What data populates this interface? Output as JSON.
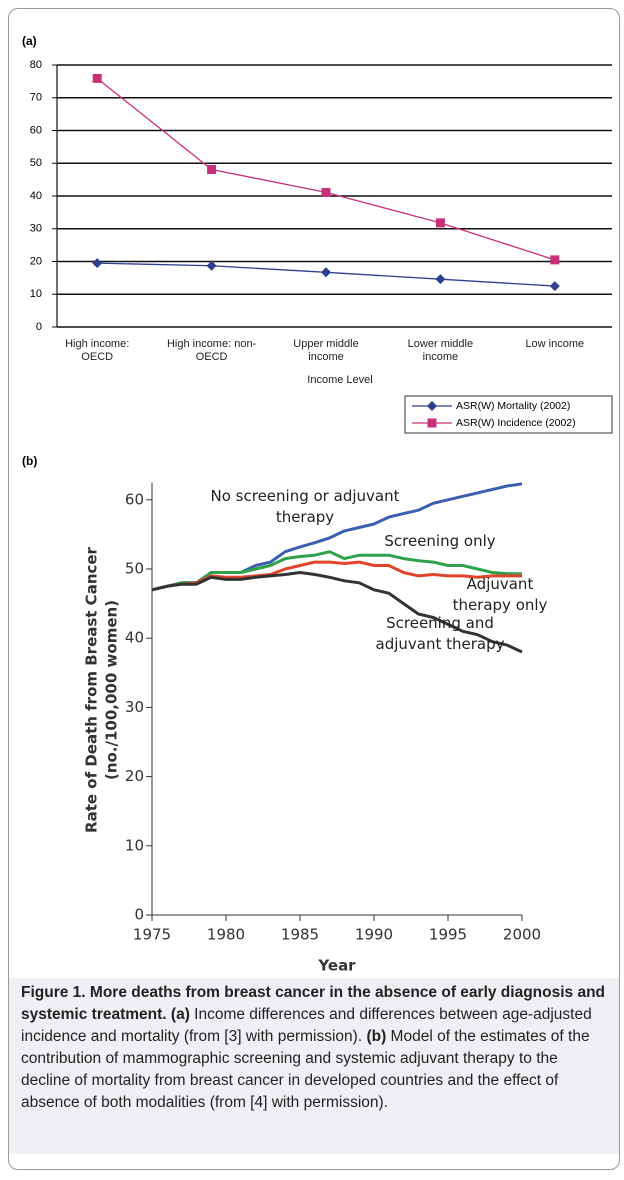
{
  "chart_data": [
    {
      "type": "line",
      "panel": "(a)",
      "categories": [
        "High income: OECD",
        "High income: non-OECD",
        "Upper middle income",
        "Lower middle income",
        "Low income"
      ],
      "xlabel": "Income Level",
      "ylim": [
        0,
        80
      ],
      "yticks": [
        0,
        10,
        20,
        30,
        40,
        50,
        60,
        70,
        80
      ],
      "grid": true,
      "series": [
        {
          "name": "ASR(W) Mortality (2002)",
          "color": "#2f3f8f",
          "marker": "diamond",
          "values": [
            19.5,
            18.7,
            16.7,
            14.6,
            12.5
          ]
        },
        {
          "name": "ASR(W) Incidence (2002)",
          "color": "#c8307a",
          "marker": "square",
          "values": [
            75.9,
            48.1,
            41.1,
            31.8,
            20.5
          ]
        }
      ]
    },
    {
      "type": "line",
      "panel": "(b)",
      "x": [
        1975,
        1976,
        1977,
        1978,
        1979,
        1980,
        1981,
        1982,
        1983,
        1984,
        1985,
        1986,
        1987,
        1988,
        1989,
        1990,
        1991,
        1992,
        1993,
        1994,
        1995,
        1996,
        1997,
        1998,
        1999,
        2000
      ],
      "xlim": [
        1975,
        2000
      ],
      "xticks": [
        1975,
        1980,
        1985,
        1990,
        1995,
        2000
      ],
      "ylim": [
        0,
        62.5
      ],
      "yticks": [
        0,
        10,
        20,
        30,
        40,
        50,
        60
      ],
      "grid": false,
      "xlabel": "Year",
      "ylabel": "Rate of Death from Breast Cancer",
      "ylabel_unit": "(no./100,000 women)",
      "series": [
        {
          "name": "No screening or adjuvant therapy",
          "color": "#3a5fb0",
          "values": [
            47,
            47.5,
            48,
            48,
            49.5,
            49.5,
            49.5,
            50.5,
            51,
            52.5,
            53.2,
            53.8,
            54.5,
            55.5,
            56,
            56.5,
            57.5,
            58,
            58.5,
            59.5,
            60,
            60.5,
            61,
            61.5,
            62,
            62.3
          ]
        },
        {
          "name": "Screening only",
          "color": "#2ea24a",
          "values": [
            47,
            47.5,
            48,
            48,
            49.5,
            49.5,
            49.5,
            50,
            50.5,
            51.5,
            51.8,
            52,
            52.5,
            51.5,
            52,
            52,
            52,
            51.5,
            51.2,
            51,
            50.5,
            50.5,
            50,
            49.5,
            49.3,
            49.3
          ]
        },
        {
          "name": "Adjuvant therapy only",
          "color": "#e0452b",
          "values": [
            47,
            47.5,
            47.8,
            48,
            49,
            48.8,
            48.8,
            49,
            49.2,
            50,
            50.5,
            51,
            51,
            50.8,
            51,
            50.5,
            50.5,
            49.5,
            49,
            49.2,
            49,
            49,
            48.8,
            49,
            49,
            49
          ]
        },
        {
          "name": "Screening and adjuvant therapy",
          "color": "#333333",
          "values": [
            47,
            47.5,
            47.8,
            47.8,
            48.8,
            48.5,
            48.5,
            48.8,
            49,
            49.2,
            49.5,
            49.2,
            48.8,
            48.3,
            48,
            47,
            46.5,
            45,
            43.5,
            43,
            42,
            41,
            40.5,
            39.5,
            39,
            38
          ]
        }
      ]
    }
  ],
  "caption": {
    "title": "Figure 1. More deaths from breast cancer in the absence of early diagnosis and systemic treatment.",
    "a_label": "(a)",
    "a_text": "Income differences and differences between age-adjusted incidence and mortality (from [3] with permission).",
    "b_label": "(b)",
    "b_text": "Model of the estimates of the contribution of mammographic screening and systemic adjuvant therapy to the decline of mortality from breast cancer in developed countries and the effect of absence of both modalities (from [4] with permission)."
  }
}
